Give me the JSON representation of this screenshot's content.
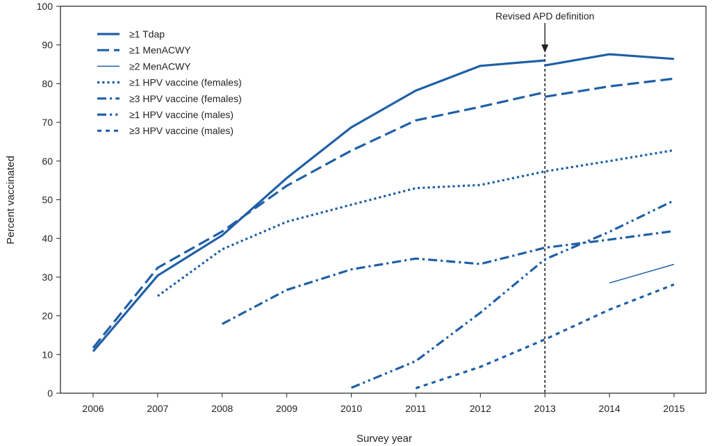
{
  "chart_data": {
    "type": "line",
    "title": "",
    "xlabel": "Survey year",
    "ylabel": "Percent vaccinated",
    "x": [
      2006,
      2007,
      2008,
      2009,
      2010,
      2011,
      2012,
      2013,
      2014,
      2015
    ],
    "xlim": [
      2006,
      2015
    ],
    "ylim": [
      0,
      100
    ],
    "yticks": [
      0,
      10,
      20,
      30,
      40,
      50,
      60,
      70,
      80,
      90,
      100
    ],
    "grid": false,
    "legend_position": "top-left",
    "color": "#1f5fa6",
    "annotation": {
      "label": "Revised APD definition",
      "x": 2013
    },
    "series": [
      {
        "name": "≥1 Tdap",
        "style": "solid-thick",
        "segments": [
          {
            "x": [
              2006,
              2007,
              2008,
              2009,
              2010,
              2011,
              2012,
              2013
            ],
            "y": [
              10.8,
              30.4,
              40.8,
              55.6,
              68.7,
              78.2,
              84.6,
              86.0
            ]
          },
          {
            "x": [
              2013,
              2014,
              2015
            ],
            "y": [
              84.7,
              87.6,
              86.4
            ]
          }
        ]
      },
      {
        "name": "≥1 MenACWY",
        "style": "dashed-long",
        "segments": [
          {
            "x": [
              2006,
              2007,
              2008,
              2009,
              2010,
              2011,
              2012,
              2013
            ],
            "y": [
              11.7,
              32.4,
              41.8,
              53.6,
              62.7,
              70.5,
              74.0,
              77.8
            ]
          },
          {
            "x": [
              2013,
              2014,
              2015
            ],
            "y": [
              76.6,
              79.3,
              81.3
            ]
          }
        ]
      },
      {
        "name": "≥2 MenACWY",
        "style": "solid-thin",
        "segments": [
          {
            "x": [
              2014,
              2015
            ],
            "y": [
              28.5,
              33.3
            ]
          }
        ]
      },
      {
        "name": "≥1 HPV vaccine (females)",
        "style": "dotted",
        "segments": [
          {
            "x": [
              2007,
              2008,
              2009,
              2010,
              2011,
              2012,
              2013,
              2014,
              2015
            ],
            "y": [
              25.1,
              37.2,
              44.3,
              48.7,
              53.0,
              53.8,
              57.3,
              60.0,
              62.8
            ]
          }
        ]
      },
      {
        "name": "≥3 HPV vaccine (females)",
        "style": "dash-dot",
        "segments": [
          {
            "x": [
              2008,
              2009,
              2010,
              2011,
              2012,
              2013,
              2014,
              2015
            ],
            "y": [
              17.9,
              26.7,
              32.0,
              34.8,
              33.4,
              37.6,
              39.7,
              41.9
            ]
          }
        ]
      },
      {
        "name": "≥1 HPV vaccine (males)",
        "style": "dash-dot-dot",
        "segments": [
          {
            "x": [
              2010,
              2011,
              2012,
              2013,
              2014,
              2015
            ],
            "y": [
              1.4,
              8.3,
              20.8,
              34.6,
              41.7,
              49.8
            ]
          }
        ]
      },
      {
        "name": "≥3 HPV vaccine (males)",
        "style": "short-dash",
        "segments": [
          {
            "x": [
              2011,
              2012,
              2013,
              2014,
              2015
            ],
            "y": [
              1.3,
              6.8,
              13.9,
              21.6,
              28.1
            ]
          }
        ]
      }
    ]
  }
}
